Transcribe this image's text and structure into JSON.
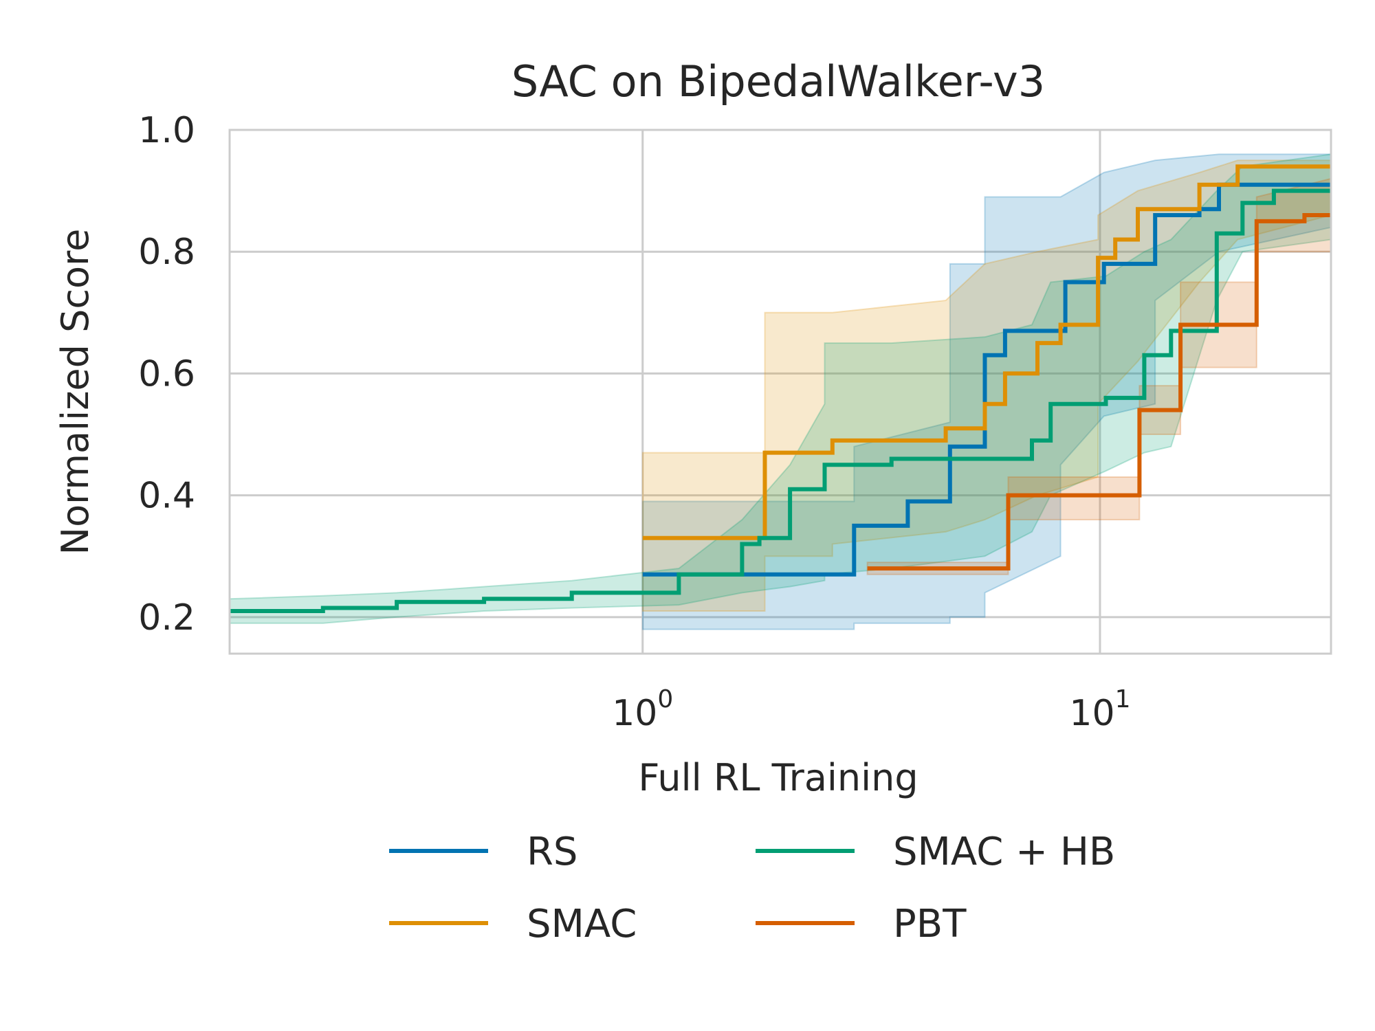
{
  "chart_data": {
    "type": "line",
    "title": "SAC on BipedalWalker-v3",
    "xlabel": "Full RL Training",
    "ylabel": "Normalized Score",
    "xscale": "log",
    "xlim": [
      0.125,
      32
    ],
    "ylim": [
      0.14,
      1.0
    ],
    "xticks": [
      {
        "value": 1,
        "base": "10",
        "exp": "0"
      },
      {
        "value": 10,
        "base": "10",
        "exp": "1"
      }
    ],
    "yticks": [
      {
        "value": 0.2,
        "label": "0.2"
      },
      {
        "value": 0.4,
        "label": "0.4"
      },
      {
        "value": 0.6,
        "label": "0.6"
      },
      {
        "value": 0.8,
        "label": "0.8"
      },
      {
        "value": 1.0,
        "label": "1.0"
      }
    ],
    "grid": true,
    "legend_position": "below",
    "series": [
      {
        "name": "RS",
        "color": "#0173b2",
        "steps": [
          [
            1.0,
            0.27
          ],
          [
            2.9,
            0.27
          ],
          [
            2.9,
            0.35
          ],
          [
            3.8,
            0.35
          ],
          [
            3.8,
            0.39
          ],
          [
            4.7,
            0.39
          ],
          [
            4.7,
            0.48
          ],
          [
            5.6,
            0.48
          ],
          [
            5.6,
            0.63
          ],
          [
            6.2,
            0.63
          ],
          [
            6.2,
            0.67
          ],
          [
            8.4,
            0.67
          ],
          [
            8.4,
            0.75
          ],
          [
            10.2,
            0.75
          ],
          [
            10.2,
            0.78
          ],
          [
            13.2,
            0.78
          ],
          [
            13.2,
            0.86
          ],
          [
            16.5,
            0.86
          ],
          [
            16.5,
            0.87
          ],
          [
            18.2,
            0.87
          ],
          [
            18.2,
            0.91
          ],
          [
            32,
            0.91
          ]
        ],
        "band": [
          [
            1.0,
            0.18,
            0.39
          ],
          [
            1.9,
            0.18,
            0.39
          ],
          [
            1.9,
            0.18,
            0.39
          ],
          [
            2.9,
            0.18,
            0.39
          ],
          [
            2.9,
            0.19,
            0.48
          ],
          [
            4.7,
            0.19,
            0.52
          ],
          [
            4.7,
            0.2,
            0.78
          ],
          [
            5.6,
            0.2,
            0.78
          ],
          [
            5.6,
            0.24,
            0.89
          ],
          [
            8.2,
            0.3,
            0.89
          ],
          [
            8.2,
            0.45,
            0.89
          ],
          [
            10.2,
            0.53,
            0.93
          ],
          [
            13.2,
            0.55,
            0.95
          ],
          [
            13.2,
            0.72,
            0.95
          ],
          [
            18.2,
            0.8,
            0.96
          ],
          [
            32,
            0.84,
            0.96
          ]
        ]
      },
      {
        "name": "SMAC",
        "color": "#de8f05",
        "steps": [
          [
            1.0,
            0.33
          ],
          [
            1.85,
            0.33
          ],
          [
            1.85,
            0.47
          ],
          [
            2.6,
            0.47
          ],
          [
            2.6,
            0.49
          ],
          [
            4.6,
            0.49
          ],
          [
            4.6,
            0.51
          ],
          [
            5.6,
            0.51
          ],
          [
            5.6,
            0.55
          ],
          [
            6.2,
            0.55
          ],
          [
            6.2,
            0.6
          ],
          [
            7.3,
            0.6
          ],
          [
            7.3,
            0.65
          ],
          [
            8.2,
            0.65
          ],
          [
            8.2,
            0.68
          ],
          [
            9.9,
            0.68
          ],
          [
            9.9,
            0.79
          ],
          [
            10.8,
            0.79
          ],
          [
            10.8,
            0.82
          ],
          [
            12.1,
            0.82
          ],
          [
            12.1,
            0.87
          ],
          [
            16.5,
            0.87
          ],
          [
            16.5,
            0.91
          ],
          [
            20.0,
            0.91
          ],
          [
            20.0,
            0.94
          ],
          [
            32,
            0.94
          ]
        ],
        "band": [
          [
            1.0,
            0.21,
            0.47
          ],
          [
            1.85,
            0.21,
            0.47
          ],
          [
            1.85,
            0.3,
            0.7
          ],
          [
            2.6,
            0.3,
            0.7
          ],
          [
            2.6,
            0.32,
            0.7
          ],
          [
            4.6,
            0.34,
            0.72
          ],
          [
            5.6,
            0.36,
            0.78
          ],
          [
            7.3,
            0.4,
            0.8
          ],
          [
            9.9,
            0.43,
            0.82
          ],
          [
            9.9,
            0.55,
            0.86
          ],
          [
            12.1,
            0.62,
            0.9
          ],
          [
            16.5,
            0.75,
            0.93
          ],
          [
            20.0,
            0.82,
            0.95
          ],
          [
            32,
            0.86,
            0.95
          ]
        ]
      },
      {
        "name": "SMAC + HB",
        "color": "#029e73",
        "steps": [
          [
            0.125,
            0.21
          ],
          [
            0.2,
            0.21
          ],
          [
            0.2,
            0.215
          ],
          [
            0.29,
            0.215
          ],
          [
            0.29,
            0.225
          ],
          [
            0.45,
            0.225
          ],
          [
            0.45,
            0.23
          ],
          [
            0.7,
            0.23
          ],
          [
            0.7,
            0.24
          ],
          [
            1.2,
            0.24
          ],
          [
            1.2,
            0.27
          ],
          [
            1.65,
            0.27
          ],
          [
            1.65,
            0.32
          ],
          [
            1.8,
            0.32
          ],
          [
            1.8,
            0.33
          ],
          [
            2.1,
            0.33
          ],
          [
            2.1,
            0.41
          ],
          [
            2.5,
            0.41
          ],
          [
            2.5,
            0.45
          ],
          [
            3.5,
            0.45
          ],
          [
            3.5,
            0.46
          ],
          [
            7.1,
            0.46
          ],
          [
            7.1,
            0.49
          ],
          [
            7.8,
            0.49
          ],
          [
            7.8,
            0.55
          ],
          [
            10.3,
            0.55
          ],
          [
            10.3,
            0.56
          ],
          [
            12.5,
            0.56
          ],
          [
            12.5,
            0.63
          ],
          [
            14.3,
            0.63
          ],
          [
            14.3,
            0.67
          ],
          [
            18.0,
            0.67
          ],
          [
            18.0,
            0.83
          ],
          [
            20.5,
            0.83
          ],
          [
            20.5,
            0.88
          ],
          [
            24.0,
            0.88
          ],
          [
            24.0,
            0.9
          ],
          [
            32,
            0.9
          ]
        ],
        "band": [
          [
            0.125,
            0.19,
            0.23
          ],
          [
            0.2,
            0.19,
            0.235
          ],
          [
            0.29,
            0.2,
            0.24
          ],
          [
            0.45,
            0.21,
            0.25
          ],
          [
            0.7,
            0.215,
            0.26
          ],
          [
            1.2,
            0.22,
            0.28
          ],
          [
            1.65,
            0.24,
            0.36
          ],
          [
            2.1,
            0.25,
            0.45
          ],
          [
            2.5,
            0.26,
            0.55
          ],
          [
            2.5,
            0.27,
            0.65
          ],
          [
            3.5,
            0.28,
            0.65
          ],
          [
            5.6,
            0.3,
            0.66
          ],
          [
            7.1,
            0.34,
            0.68
          ],
          [
            7.8,
            0.4,
            0.75
          ],
          [
            10.3,
            0.44,
            0.76
          ],
          [
            12.5,
            0.47,
            0.8
          ],
          [
            14.3,
            0.48,
            0.82
          ],
          [
            18.0,
            0.72,
            0.9
          ],
          [
            20.5,
            0.8,
            0.94
          ],
          [
            32,
            0.82,
            0.96
          ]
        ]
      },
      {
        "name": "PBT",
        "color": "#d55e00",
        "steps": [
          [
            3.1,
            0.28
          ],
          [
            6.3,
            0.28
          ],
          [
            6.3,
            0.4
          ],
          [
            12.2,
            0.4
          ],
          [
            12.2,
            0.54
          ],
          [
            15.0,
            0.54
          ],
          [
            15.0,
            0.68
          ],
          [
            22.0,
            0.68
          ],
          [
            22.0,
            0.85
          ],
          [
            28.0,
            0.85
          ],
          [
            28.0,
            0.86
          ],
          [
            32,
            0.86
          ]
        ],
        "band": [
          [
            3.1,
            0.27,
            0.29
          ],
          [
            6.3,
            0.27,
            0.29
          ],
          [
            6.3,
            0.36,
            0.43
          ],
          [
            12.2,
            0.36,
            0.43
          ],
          [
            12.2,
            0.5,
            0.58
          ],
          [
            15.0,
            0.5,
            0.58
          ],
          [
            15.0,
            0.61,
            0.75
          ],
          [
            22.0,
            0.61,
            0.75
          ],
          [
            22.0,
            0.8,
            0.89
          ],
          [
            32,
            0.8,
            0.92
          ]
        ]
      }
    ]
  }
}
